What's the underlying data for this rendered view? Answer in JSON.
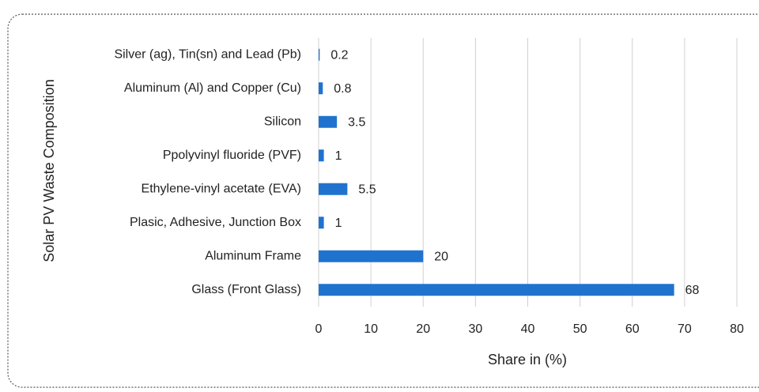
{
  "chart_data": {
    "type": "bar",
    "orientation": "horizontal",
    "y_axis_label": "Solar PV Waste Composition",
    "x_axis_label": "Share in (%)",
    "categories": [
      "Silver (ag), Tin(sn) and Lead (Pb)",
      "Aluminum (Al) and Copper (Cu)",
      "Silicon",
      "Ppolyvinyl fluoride (PVF)",
      "Ethylene-vinyl acetate (EVA)",
      "Plasic, Adhesive, Junction Box",
      "Aluminum Frame",
      "Glass (Front Glass)"
    ],
    "values": [
      0.2,
      0.8,
      3.5,
      1,
      5.5,
      1,
      20,
      68
    ],
    "color": "#1f73cf",
    "xlim": [
      0,
      80
    ],
    "xticks": [
      0,
      10,
      20,
      30,
      40,
      50,
      60,
      70,
      80
    ],
    "grid": true
  }
}
